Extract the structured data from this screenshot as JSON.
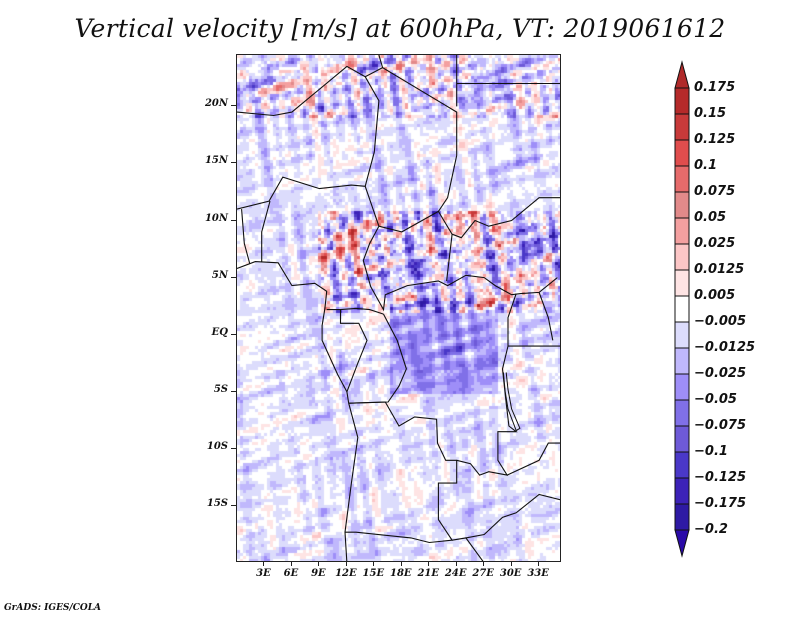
{
  "title": "Vertical velocity [m/s] at 600hPa, VT: 2019061612",
  "footer": "GrADS: IGES/COLA",
  "map": {
    "variable": "Vertical velocity",
    "units": "m/s",
    "level": "600hPa",
    "valid_time": "2019061612",
    "projection": "latlon",
    "lon_range": [
      0,
      35.5
    ],
    "lat_range": [
      -20,
      24.5
    ],
    "lat_ticks": [
      {
        "value": 20,
        "label": "20N"
      },
      {
        "value": 15,
        "label": "15N"
      },
      {
        "value": 10,
        "label": "10N"
      },
      {
        "value": 5,
        "label": "5N"
      },
      {
        "value": 0,
        "label": "EQ"
      },
      {
        "value": -5,
        "label": "5S"
      },
      {
        "value": -10,
        "label": "10S"
      },
      {
        "value": -15,
        "label": "15S"
      }
    ],
    "lon_ticks": [
      {
        "value": 3,
        "label": "3E"
      },
      {
        "value": 6,
        "label": "6E"
      },
      {
        "value": 9,
        "label": "9E"
      },
      {
        "value": 12,
        "label": "12E"
      },
      {
        "value": 15,
        "label": "15E"
      },
      {
        "value": 18,
        "label": "18E"
      },
      {
        "value": 21,
        "label": "21E"
      },
      {
        "value": 24,
        "label": "24E"
      },
      {
        "value": 27,
        "label": "27E"
      },
      {
        "value": 30,
        "label": "30E"
      },
      {
        "value": 33,
        "label": "33E"
      }
    ]
  },
  "colorbar": {
    "orientation": "vertical",
    "placement": "right",
    "extend": "both",
    "top_arrow_color": "#b02a2a",
    "bottom_arrow_color": "#2a0aa8",
    "levels": [
      {
        "label": "0.175",
        "color": "#b52a2a"
      },
      {
        "label": "0.15",
        "color": "#c83a3a"
      },
      {
        "label": "0.125",
        "color": "#e04d4d"
      },
      {
        "label": "0.1",
        "color": "#e66b6b"
      },
      {
        "label": "0.075",
        "color": "#e28a8a"
      },
      {
        "label": "0.05",
        "color": "#f4a0a0"
      },
      {
        "label": "0.025",
        "color": "#fcc6c6"
      },
      {
        "label": "0.0125",
        "color": "#fee4e4"
      },
      {
        "label": "0.005",
        "color": "#ffffff"
      },
      {
        "label": "-0.005",
        "color": "#dcdcfc"
      },
      {
        "label": "-0.0125",
        "color": "#c0b8fc"
      },
      {
        "label": "-0.025",
        "color": "#9e8ef8"
      },
      {
        "label": "-0.05",
        "color": "#8070e8"
      },
      {
        "label": "-0.075",
        "color": "#6e5ad8"
      },
      {
        "label": "-0.1",
        "color": "#4a38c8"
      },
      {
        "label": "-0.125",
        "color": "#3c22b8"
      },
      {
        "label": "-0.175",
        "color": "#2e1aa4"
      },
      {
        "label": "-0.2",
        "color": ""
      }
    ]
  }
}
